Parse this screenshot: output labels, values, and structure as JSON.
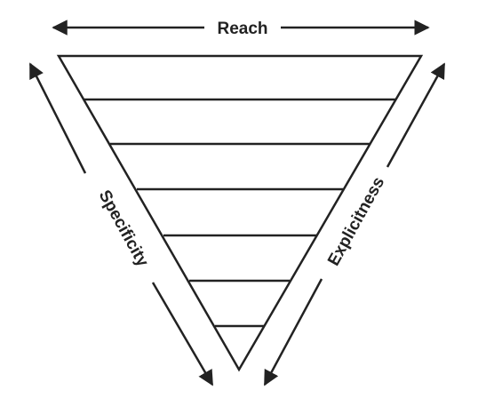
{
  "diagram": {
    "top_label": "Reach",
    "left_label": "Specificity",
    "right_label": "Explicitness",
    "layers": 7,
    "colors": {
      "stroke": "#222222",
      "fill": "#ffffff",
      "text": "#222222"
    }
  }
}
